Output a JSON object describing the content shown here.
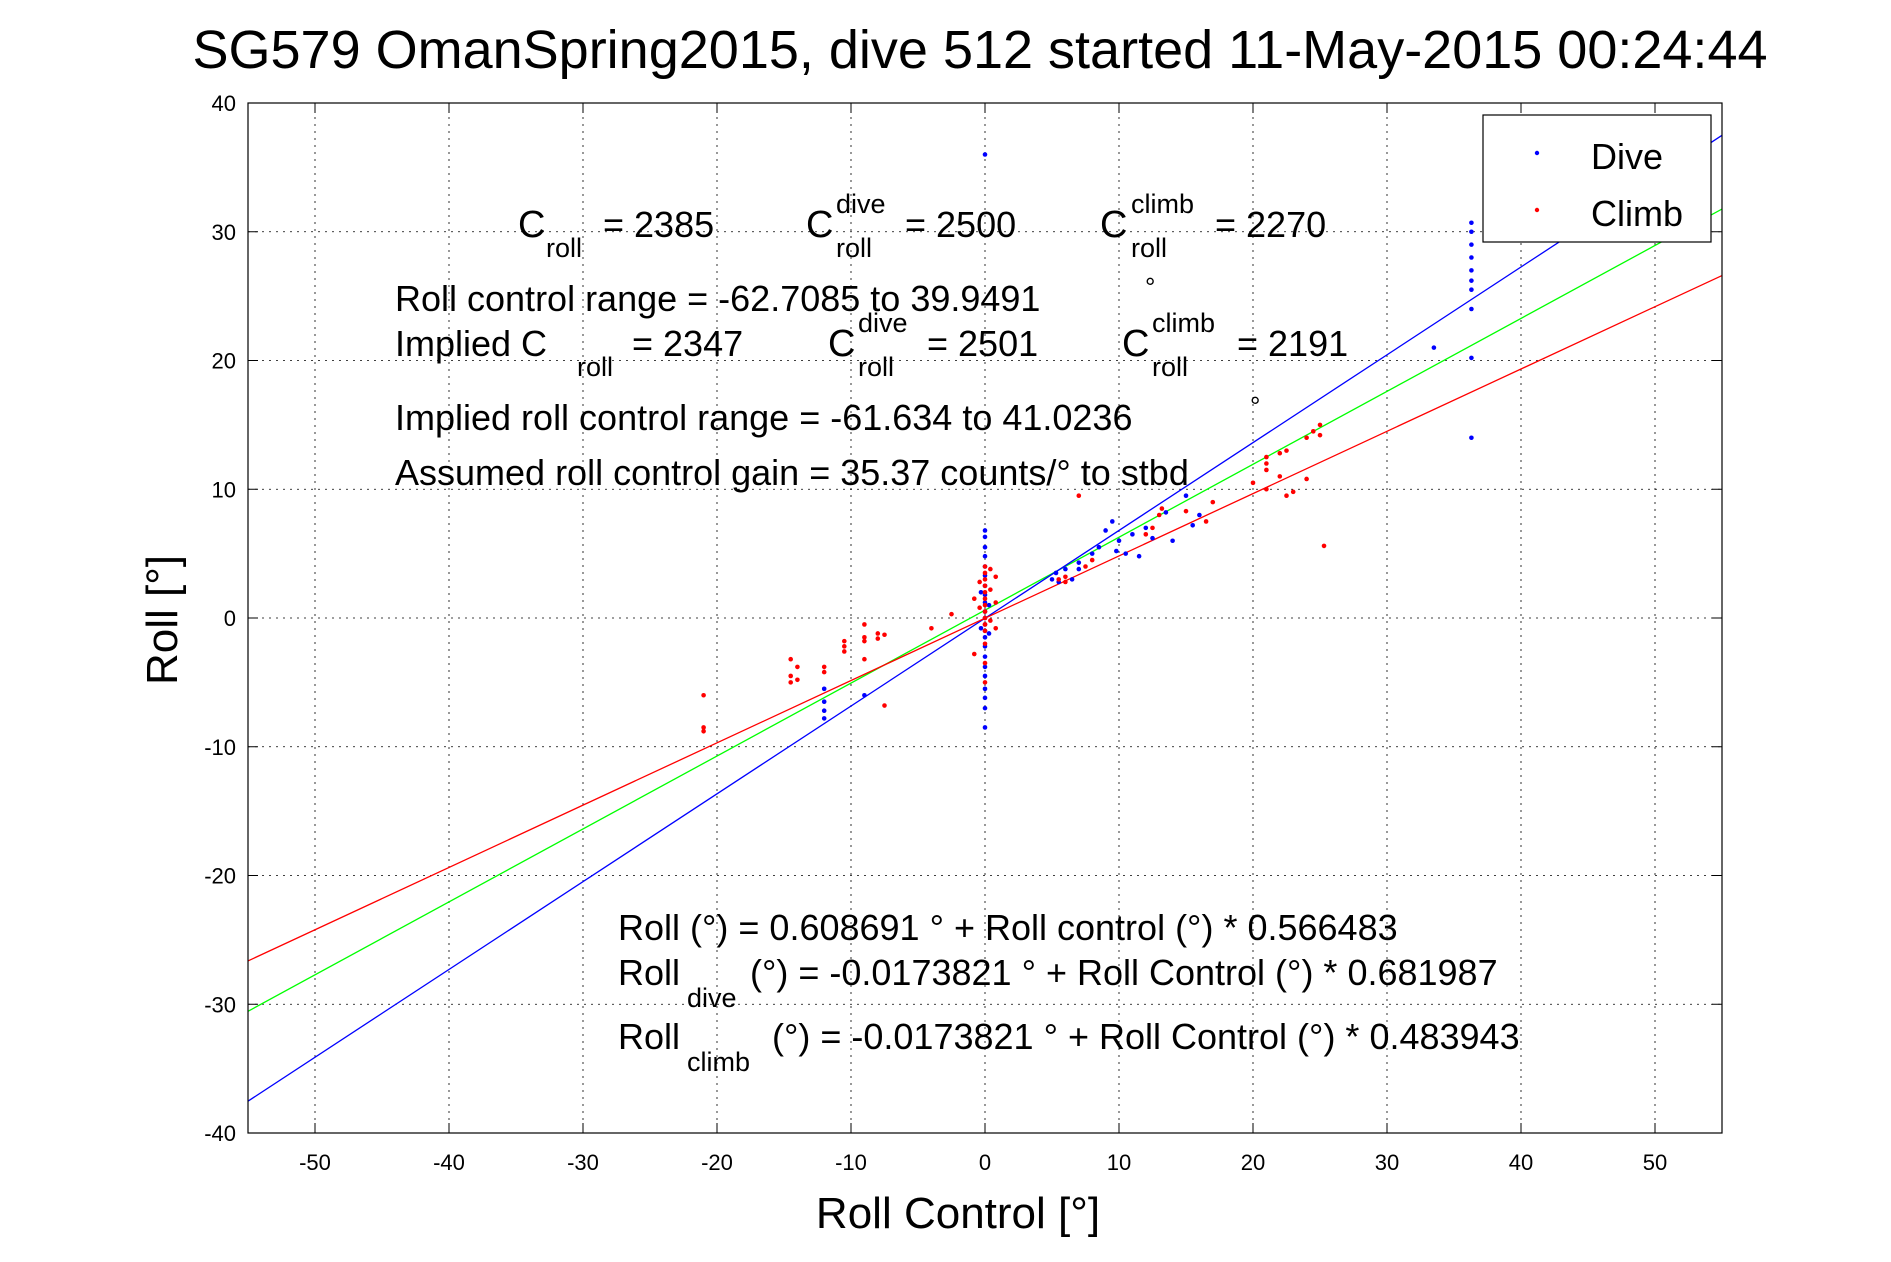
{
  "chart_data": {
    "type": "scatter",
    "title": "SG579 OmanSpring2015, dive 512 started 11-May-2015 00:24:44",
    "xlabel": "Roll Control [°]",
    "ylabel": "Roll [°]",
    "xlim": [
      -55,
      55
    ],
    "ylim": [
      -40,
      40
    ],
    "xticks": [
      -50,
      -40,
      -30,
      -20,
      -10,
      0,
      10,
      20,
      30,
      40,
      50
    ],
    "yticks": [
      -40,
      -30,
      -20,
      -10,
      0,
      10,
      20,
      30,
      40
    ],
    "grid": true,
    "legend_position": "top-right",
    "legend": [
      {
        "label": "Dive",
        "color": "#0000ff"
      },
      {
        "label": "Climb",
        "color": "#ff0000"
      }
    ],
    "fit_lines": [
      {
        "color": "#00ff00",
        "intercept": 0.608691,
        "slope": 0.566483
      },
      {
        "color": "#0000ff",
        "intercept": -0.0173821,
        "slope": 0.681987
      },
      {
        "color": "#ff0000",
        "intercept": -0.0173821,
        "slope": 0.483943
      }
    ],
    "series": [
      {
        "name": "Dive",
        "color": "#0000ff",
        "points": [
          [
            0,
            36
          ],
          [
            36.3,
            30.7
          ],
          [
            36.3,
            30
          ],
          [
            36.3,
            29
          ],
          [
            36.3,
            28
          ],
          [
            36.3,
            27
          ],
          [
            36.3,
            26.2
          ],
          [
            36.3,
            25.5
          ],
          [
            36.3,
            24
          ],
          [
            36.3,
            20.2
          ],
          [
            36.3,
            14
          ],
          [
            33.5,
            21
          ],
          [
            -12,
            -5.5
          ],
          [
            -12,
            -6.5
          ],
          [
            -12,
            -7.2
          ],
          [
            -12,
            -7.8
          ],
          [
            -9,
            -6
          ],
          [
            0,
            6.8
          ],
          [
            0,
            6.3
          ],
          [
            0,
            5.5
          ],
          [
            0,
            4.8
          ],
          [
            0,
            4
          ],
          [
            0,
            3.3
          ],
          [
            0,
            2.5
          ],
          [
            0,
            1.8
          ],
          [
            0,
            1.2
          ],
          [
            0,
            0.5
          ],
          [
            0,
            0
          ],
          [
            0,
            -0.5
          ],
          [
            0,
            -1
          ],
          [
            0,
            -1.5
          ],
          [
            0,
            -2.2
          ],
          [
            0,
            -3
          ],
          [
            0,
            -3.8
          ],
          [
            0,
            -4.5
          ],
          [
            0,
            -5.5
          ],
          [
            0,
            -6.2
          ],
          [
            0,
            -7
          ],
          [
            0,
            -8.5
          ],
          [
            -0.3,
            2
          ],
          [
            -0.3,
            -0.8
          ],
          [
            0.3,
            1
          ],
          [
            0.3,
            -1.2
          ],
          [
            5,
            3
          ],
          [
            5.3,
            3.5
          ],
          [
            5.5,
            2.8
          ],
          [
            6,
            3.8
          ],
          [
            7,
            4.3
          ],
          [
            8,
            5
          ],
          [
            8.5,
            5.5
          ],
          [
            9,
            6.8
          ],
          [
            9.5,
            7.5
          ],
          [
            9.8,
            5.2
          ],
          [
            10,
            6
          ],
          [
            10.5,
            5
          ],
          [
            11,
            6.5
          ],
          [
            11.5,
            4.8
          ],
          [
            12,
            7
          ],
          [
            12.5,
            6.2
          ],
          [
            13.5,
            8.2
          ],
          [
            14,
            6
          ],
          [
            15,
            9.5
          ],
          [
            15.5,
            7.2
          ],
          [
            7,
            3.8
          ],
          [
            6.5,
            3
          ],
          [
            16,
            8
          ]
        ]
      },
      {
        "name": "Climb",
        "color": "#ff0000",
        "points": [
          [
            -21,
            -6
          ],
          [
            -21,
            -8.5
          ],
          [
            -21,
            -8.8
          ],
          [
            -14.5,
            -3.2
          ],
          [
            -14.5,
            -4.5
          ],
          [
            -14.5,
            -5
          ],
          [
            -14,
            -3.8
          ],
          [
            -14,
            -4.8
          ],
          [
            -12,
            -3.8
          ],
          [
            -12,
            -4.2
          ],
          [
            -10.5,
            -2.2
          ],
          [
            -10.5,
            -2.6
          ],
          [
            -10.5,
            -1.8
          ],
          [
            -9,
            -0.5
          ],
          [
            -9,
            -1.5
          ],
          [
            -9,
            -1.8
          ],
          [
            -9,
            -3.2
          ],
          [
            -8,
            -1.2
          ],
          [
            -8,
            -1.6
          ],
          [
            -7.5,
            -1.3
          ],
          [
            -7.5,
            -6.8
          ],
          [
            -4,
            -0.8
          ],
          [
            -2.5,
            0.3
          ],
          [
            0,
            4
          ],
          [
            0,
            3.5
          ],
          [
            0,
            3
          ],
          [
            0,
            2.5
          ],
          [
            0,
            2
          ],
          [
            0,
            1.5
          ],
          [
            0,
            1
          ],
          [
            0,
            0.5
          ],
          [
            0,
            0
          ],
          [
            0,
            -0.5
          ],
          [
            0,
            -1
          ],
          [
            0,
            -2
          ],
          [
            0,
            -3.5
          ],
          [
            0,
            -5
          ],
          [
            -0.4,
            2.8
          ],
          [
            -0.4,
            0.8
          ],
          [
            0.4,
            3.8
          ],
          [
            0.4,
            2.2
          ],
          [
            0.4,
            -0.2
          ],
          [
            0.8,
            3.2
          ],
          [
            0.8,
            1.2
          ],
          [
            0.8,
            -0.8
          ],
          [
            -0.8,
            1.5
          ],
          [
            -0.8,
            -2.8
          ],
          [
            5.5,
            3
          ],
          [
            6,
            2.8
          ],
          [
            6,
            3.2
          ],
          [
            7,
            9.5
          ],
          [
            7.5,
            4
          ],
          [
            8,
            4.5
          ],
          [
            12,
            6.5
          ],
          [
            12.5,
            7
          ],
          [
            13,
            8
          ],
          [
            13.2,
            8.5
          ],
          [
            15,
            8.3
          ],
          [
            16.5,
            7.5
          ],
          [
            17,
            9
          ],
          [
            20,
            10.5
          ],
          [
            21,
            11.5
          ],
          [
            21,
            12
          ],
          [
            21,
            12.5
          ],
          [
            21,
            10
          ],
          [
            22,
            12.8
          ],
          [
            22,
            11
          ],
          [
            22.5,
            13
          ],
          [
            22.5,
            9.5
          ],
          [
            24,
            14
          ],
          [
            24.5,
            14.5
          ],
          [
            25,
            15
          ],
          [
            25,
            14.2
          ],
          [
            24,
            10.8
          ],
          [
            25.3,
            5.6
          ],
          [
            23,
            9.8
          ]
        ]
      }
    ],
    "annotations": {
      "c_roll": "C",
      "sub_roll": "roll",
      "sup_dive": "dive",
      "sup_climb": "climb",
      "sub_dive": "dive",
      "sub_climb": "climb",
      "deg": "°",
      "l1_a": "= 2385",
      "l1_b": "= 2500",
      "l1_c": "= 2270",
      "l2": "Roll control range = -62.7085 to 39.9491",
      "l3_pre": "Implied C",
      "l3_a": "= 2347",
      "l3_b": "= 2501",
      "l3_c": "= 2191",
      "l4": "Implied roll control range = -61.634 to 41.0236",
      "l5": "Assumed roll control gain = 35.37 counts/° to stbd",
      "eq1": "Roll (°) = 0.608691 ° + Roll control (°) * 0.566483",
      "eq2_pre": "Roll",
      "eq2_post": "(°) = -0.0173821 ° + Roll Control (°) * 0.681987",
      "eq3_pre": "Roll",
      "eq3_post": "(°) = -0.0173821 ° + Roll Control (°) * 0.483943"
    }
  }
}
